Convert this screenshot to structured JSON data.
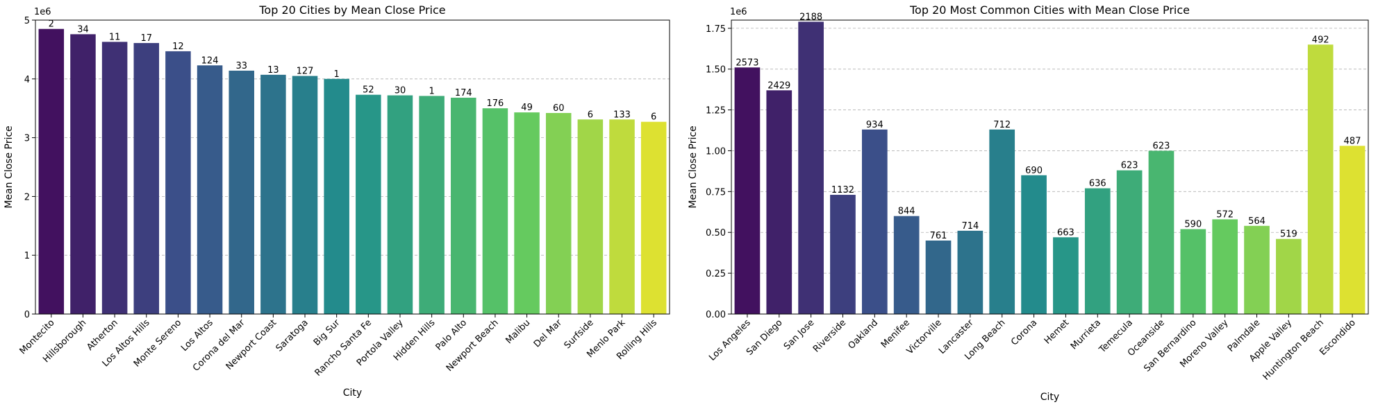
{
  "charts": [
    {
      "type": "bar",
      "title": "Top 20 Cities by Mean Close Price",
      "xlabel": "City",
      "ylabel": "Mean Close Price",
      "offset_label": "1e6",
      "ylim": [
        0,
        5.0
      ],
      "yticks": [
        "0",
        "1",
        "2",
        "3",
        "4",
        "5"
      ],
      "ytick_values": [
        0,
        1,
        2,
        3,
        4,
        5
      ],
      "grid": "y-dashed",
      "palette": "viridis",
      "categories": [
        "Montecito",
        "Hillsborough",
        "Atherton",
        "Los Altos Hills",
        "Monte Sereno",
        "Los Altos",
        "Corona del Mar",
        "Newport Coast",
        "Saratoga",
        "Big Sur",
        "Rancho Santa Fe",
        "Portola Valley",
        "Hidden Hills",
        "Palo Alto",
        "Newport Beach",
        "Malibu",
        "Del Mar",
        "Surfside",
        "Menlo Park",
        "Rolling Hills"
      ],
      "values": [
        4.85,
        4.76,
        4.63,
        4.61,
        4.47,
        4.23,
        4.14,
        4.07,
        4.05,
        4.0,
        3.73,
        3.72,
        3.71,
        3.68,
        3.5,
        3.43,
        3.42,
        3.31,
        3.31,
        3.27
      ],
      "labels": [
        "2",
        "34",
        "11",
        "17",
        "12",
        "124",
        "33",
        "13",
        "127",
        "1",
        "52",
        "30",
        "1",
        "174",
        "176",
        "49",
        "60",
        "6",
        "133",
        "6"
      ]
    },
    {
      "type": "bar",
      "title": "Top 20 Most Common Cities with Mean Close Price",
      "xlabel": "City",
      "ylabel": "Mean Close Price",
      "offset_label": "1e6",
      "ylim": [
        0,
        1.8
      ],
      "yticks": [
        "0.00",
        "0.25",
        "0.50",
        "0.75",
        "1.00",
        "1.25",
        "1.50",
        "1.75"
      ],
      "ytick_values": [
        0,
        0.25,
        0.5,
        0.75,
        1.0,
        1.25,
        1.5,
        1.75
      ],
      "grid": "y-dashed",
      "palette": "viridis",
      "categories": [
        "Los Angeles",
        "San Diego",
        "San Jose",
        "Riverside",
        "Oakland",
        "Menifee",
        "Victorville",
        "Lancaster",
        "Long Beach",
        "Corona",
        "Hemet",
        "Murrieta",
        "Temecula",
        "Oceanside",
        "San Bernardino",
        "Moreno Valley",
        "Palmdale",
        "Apple Valley",
        "Huntington Beach",
        "Escondido"
      ],
      "values": [
        1.51,
        1.37,
        1.79,
        0.73,
        1.13,
        0.6,
        0.45,
        0.51,
        1.13,
        0.85,
        0.47,
        0.77,
        0.88,
        1.0,
        0.52,
        0.58,
        0.54,
        0.46,
        1.65,
        1.03
      ],
      "labels": [
        "2573",
        "2429",
        "2188",
        "1132",
        "934",
        "844",
        "761",
        "714",
        "712",
        "690",
        "663",
        "636",
        "623",
        "623",
        "590",
        "572",
        "564",
        "519",
        "492",
        "487"
      ]
    }
  ]
}
